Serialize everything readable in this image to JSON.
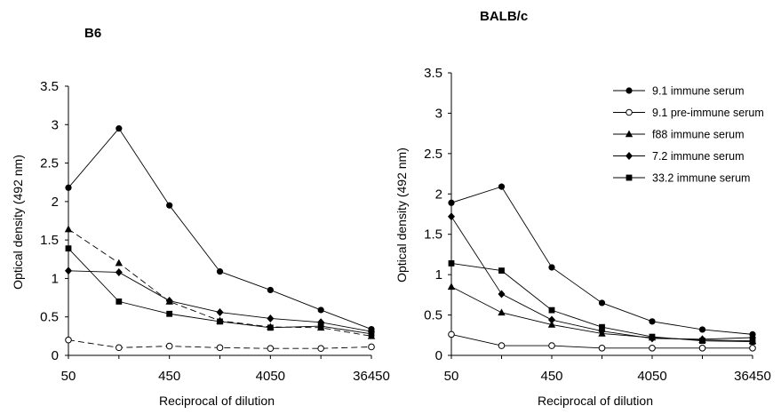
{
  "chart_data": [
    {
      "type": "line",
      "title": "B6",
      "xlabel": "Reciprocal of dilution",
      "ylabel": "Optical density (492 nm)",
      "x": [
        50,
        150,
        450,
        1350,
        4050,
        12150,
        36450
      ],
      "xtick_labels": [
        "50",
        "450",
        "4050",
        "36450"
      ],
      "x_scale": "log",
      "ylim": [
        0,
        3.5
      ],
      "yticks": [
        "0",
        "0.5",
        "1",
        "1.5",
        "2",
        "2.5",
        "3",
        "3.5"
      ],
      "grid": false,
      "series": [
        {
          "name": "9.1 immune serum",
          "marker": "circle",
          "line": "solid",
          "values": [
            2.18,
            2.95,
            1.95,
            1.09,
            0.85,
            0.59,
            0.34
          ]
        },
        {
          "name": "9.1 pre-immune serum",
          "marker": "open-circle",
          "line": "dashed",
          "values": [
            0.2,
            0.1,
            0.12,
            0.1,
            0.09,
            0.09,
            0.11
          ]
        },
        {
          "name": "f88 immune serum",
          "marker": "triangle",
          "line": "dashed",
          "values": [
            1.64,
            1.2,
            0.7,
            0.45,
            0.37,
            0.36,
            0.25
          ]
        },
        {
          "name": "7.2 immune serum",
          "marker": "diamond",
          "line": "solid",
          "values": [
            1.1,
            1.08,
            0.71,
            0.56,
            0.48,
            0.43,
            0.31
          ]
        },
        {
          "name": "33.2 immune serum",
          "marker": "square",
          "line": "solid",
          "values": [
            1.39,
            0.7,
            0.54,
            0.44,
            0.36,
            0.38,
            0.28
          ]
        }
      ]
    },
    {
      "type": "line",
      "title": "BALB/c",
      "xlabel": "Reciprocal of dilution",
      "ylabel": "Optical density (492 nm)",
      "x": [
        50,
        150,
        450,
        1350,
        4050,
        12150,
        36450
      ],
      "xtick_labels": [
        "50",
        "450",
        "4050",
        "36450"
      ],
      "x_scale": "log",
      "ylim": [
        0,
        3.5
      ],
      "yticks": [
        "0",
        "0.5",
        "1",
        "1.5",
        "2",
        "2.5",
        "3",
        "3.5"
      ],
      "grid": false,
      "legend_position": "top-right",
      "series": [
        {
          "name": "9.1 immune serum",
          "marker": "circle",
          "line": "solid",
          "values": [
            1.89,
            2.09,
            1.09,
            0.65,
            0.42,
            0.32,
            0.26
          ]
        },
        {
          "name": "9.1 pre-immune serum",
          "marker": "open-circle",
          "line": "solid",
          "values": [
            0.26,
            0.12,
            0.12,
            0.09,
            0.09,
            0.09,
            0.09
          ]
        },
        {
          "name": "f88 immune serum",
          "marker": "triangle",
          "line": "solid",
          "values": [
            0.85,
            0.53,
            0.38,
            0.27,
            0.22,
            0.19,
            0.18
          ]
        },
        {
          "name": "7.2 immune serum",
          "marker": "diamond",
          "line": "solid",
          "values": [
            1.72,
            0.76,
            0.44,
            0.3,
            0.21,
            0.2,
            0.22
          ]
        },
        {
          "name": "33.2 immune serum",
          "marker": "square",
          "line": "solid",
          "values": [
            1.14,
            1.05,
            0.56,
            0.35,
            0.23,
            0.18,
            0.17
          ]
        }
      ]
    }
  ]
}
